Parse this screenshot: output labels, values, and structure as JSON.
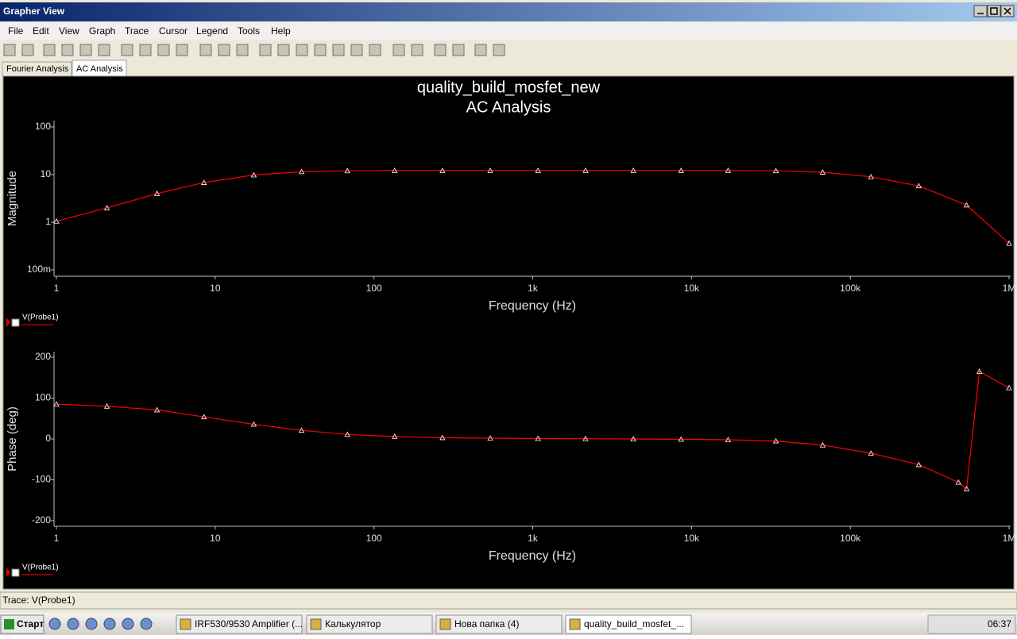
{
  "window": {
    "title": "Grapher View"
  },
  "menu": [
    "File",
    "Edit",
    "View",
    "Graph",
    "Trace",
    "Cursor",
    "Legend",
    "Tools",
    "Help"
  ],
  "tabs": [
    "Fourier Analysis",
    "AC Analysis"
  ],
  "chart_data": [
    {
      "type": "line",
      "title": "quality_build_mosfet_new",
      "subtitle": "AC Analysis",
      "x_label": "Frequency (Hz)",
      "y_label": "Magnitude",
      "log_x": true,
      "log_y": true,
      "grid": false,
      "x": [
        1,
        2.08,
        4.3,
        8.5,
        17.5,
        35,
        68,
        135,
        270,
        540,
        1080,
        2150,
        4300,
        8600,
        17000,
        34000,
        67000,
        135000,
        270000,
        540000,
        1000000
      ],
      "series": [
        {
          "name": "V(Probe1)",
          "color": "#ff0000",
          "values": [
            1.05,
            2.0,
            4.0,
            6.8,
            9.8,
            11.5,
            12,
            12.2,
            12.2,
            12.2,
            12.2,
            12.2,
            12.2,
            12.2,
            12.2,
            12,
            11.2,
            9,
            5.8,
            2.3,
            0.36
          ]
        }
      ],
      "xlim": [
        1,
        1000000
      ],
      "xticks": [
        1,
        10,
        100,
        {
          "value": 1000,
          "label": "1k"
        },
        {
          "value": 10000,
          "label": "10k"
        },
        {
          "value": 100000,
          "label": "100k"
        },
        {
          "value": 1000000,
          "label": "1M"
        }
      ],
      "ylim": [
        0.1,
        100
      ],
      "yticks": [
        100,
        10,
        1,
        {
          "value": 0.1,
          "label": "100m"
        }
      ]
    },
    {
      "type": "line",
      "x_label": "Frequency (Hz)",
      "y_label": "Phase (deg)",
      "log_x": true,
      "log_y": false,
      "grid": false,
      "x": [
        1,
        2.08,
        4.3,
        8.5,
        17.5,
        35,
        68,
        135,
        270,
        540,
        1080,
        2150,
        4300,
        8600,
        17000,
        34000,
        67000,
        135000,
        270000,
        480000,
        540000,
        650000,
        1000000
      ],
      "series": [
        {
          "name": "V(Probe1)",
          "color": "#ff0000",
          "values": [
            85,
            80,
            71,
            54,
            36,
            21,
            11,
            6,
            3,
            2,
            1,
            0.5,
            0,
            -1,
            -2,
            -5,
            -15,
            -35,
            -63,
            -106,
            -122,
            165,
            125
          ]
        }
      ],
      "xlim": [
        1,
        1000000
      ],
      "xticks": [
        1,
        10,
        100,
        {
          "value": 1000,
          "label": "1k"
        },
        {
          "value": 10000,
          "label": "10k"
        },
        {
          "value": 100000,
          "label": "100k"
        },
        {
          "value": 1000000,
          "label": "1M"
        }
      ],
      "ylim": [
        -200,
        200
      ],
      "yticks": [
        200,
        100,
        0,
        -100,
        -200
      ]
    }
  ],
  "status": "Trace: V(Probe1)",
  "taskbar": {
    "start": "Старт",
    "tasks": [
      "IRF530/9530 Amplifier (...",
      "Калькулятор",
      "Нова папка (4)",
      "quality_build_mosfet_..."
    ],
    "clock": "06:37"
  }
}
